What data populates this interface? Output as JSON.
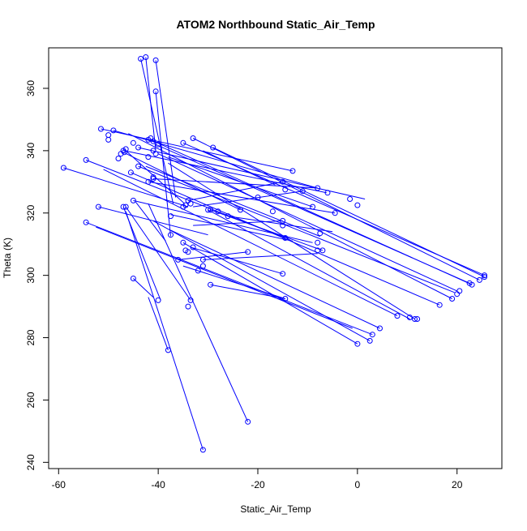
{
  "chart_data": {
    "type": "line",
    "title": "ATOM2 Northbound Static_Air_Temp",
    "xlabel": "Static_Air_Temp",
    "ylabel": "Theta (K)",
    "xlim": [
      -62,
      29
    ],
    "ylim": [
      238,
      373
    ],
    "x_ticks": [
      -60,
      -40,
      -20,
      0,
      20
    ],
    "y_ticks": [
      240,
      260,
      280,
      300,
      320,
      340,
      360
    ],
    "grid": false,
    "series_color": "#0000ff",
    "segments": [
      [
        [
          -46.5,
          340
        ],
        [
          -34.7,
          323
        ]
      ],
      [
        [
          -46.8,
          340
        ],
        [
          -6.2,
          326.5
        ]
      ],
      [
        [
          -47.0,
          339.5
        ],
        [
          -23.5,
          321
        ]
      ],
      [
        [
          -44,
          341
        ],
        [
          1.5,
          324.5
        ]
      ],
      [
        [
          -42.5,
          335
        ],
        [
          -7.5,
          312.5
        ]
      ],
      [
        [
          -38,
          338
        ],
        [
          -9,
          322
        ]
      ],
      [
        [
          -31,
          340
        ],
        [
          -16.5,
          329
        ]
      ],
      [
        [
          -35,
          342.5
        ],
        [
          25.5,
          300
        ]
      ],
      [
        [
          -33,
          344
        ],
        [
          24.5,
          298.5
        ]
      ],
      [
        [
          -29,
          341
        ],
        [
          25.5,
          299.5
        ]
      ],
      [
        [
          -41.5,
          343.5
        ],
        [
          23,
          297
        ]
      ],
      [
        [
          -40.5,
          342
        ],
        [
          22.5,
          297.5
        ]
      ],
      [
        [
          -44,
          335
        ],
        [
          19.5,
          294.5
        ]
      ],
      [
        [
          -49,
          346.5
        ],
        [
          -8,
          328
        ]
      ],
      [
        [
          -46,
          345.5
        ],
        [
          19,
          292.5
        ]
      ],
      [
        [
          -51.5,
          347
        ],
        [
          -13,
          333.5
        ]
      ],
      [
        [
          -40,
          339
        ],
        [
          20,
          295
        ]
      ],
      [
        [
          -45.5,
          333
        ],
        [
          16.5,
          290.5
        ]
      ],
      [
        [
          -41,
          331
        ],
        [
          -8,
          328
        ]
      ],
      [
        [
          -38,
          336
        ],
        [
          11.5,
          286
        ]
      ],
      [
        [
          -59,
          334.5
        ],
        [
          -34,
          322
        ]
      ],
      [
        [
          -54.5,
          337
        ],
        [
          -14.5,
          312
        ]
      ],
      [
        [
          -51,
          334
        ],
        [
          8,
          287
        ]
      ],
      [
        [
          -42,
          330
        ],
        [
          -4.5,
          320
        ]
      ],
      [
        [
          -34,
          324
        ],
        [
          -15,
          330
        ]
      ],
      [
        [
          -45,
          324
        ],
        [
          -9,
          310.5
        ]
      ],
      [
        [
          -33,
          322
        ],
        [
          -11,
          327
        ]
      ],
      [
        [
          -37.5,
          319.5
        ],
        [
          -13,
          311
        ]
      ],
      [
        [
          -29.5,
          321
        ],
        [
          -7,
          308
        ]
      ],
      [
        [
          -26,
          319
        ],
        [
          -5,
          314
        ]
      ],
      [
        [
          -33,
          316
        ],
        [
          -15,
          317.5
        ]
      ],
      [
        [
          -30,
          321
        ],
        [
          10.5,
          286
        ]
      ],
      [
        [
          -52,
          322
        ],
        [
          -30,
          313
        ]
      ],
      [
        [
          -54.5,
          317
        ],
        [
          3,
          281
        ]
      ],
      [
        [
          -52.5,
          315.5
        ],
        [
          -1,
          283
        ]
      ],
      [
        [
          -47,
          322
        ],
        [
          -39.5,
          292
        ]
      ],
      [
        [
          -46.5,
          322
        ],
        [
          -33.5,
          292
        ]
      ],
      [
        [
          -42,
          323
        ],
        [
          -22,
          253
        ]
      ],
      [
        [
          -46.5,
          320.5
        ],
        [
          -31,
          244
        ]
      ],
      [
        [
          -41,
          317.5
        ],
        [
          2.5,
          279
        ]
      ],
      [
        [
          -37.5,
          314.5
        ],
        [
          4.5,
          283
        ]
      ],
      [
        [
          -35,
          310.5
        ],
        [
          0,
          278
        ]
      ],
      [
        [
          -33.5,
          309
        ],
        [
          -15,
          300.5
        ]
      ],
      [
        [
          -31,
          305
        ],
        [
          -8,
          307
        ]
      ],
      [
        [
          -29.5,
          297
        ],
        [
          -14.5,
          292.5
        ]
      ],
      [
        [
          -36,
          305
        ],
        [
          -22,
          307.5
        ]
      ],
      [
        [
          -35,
          303
        ],
        [
          -14.5,
          292.5
        ]
      ],
      [
        [
          -43.5,
          369.5
        ],
        [
          -37,
          323
        ]
      ],
      [
        [
          -42.5,
          370
        ],
        [
          -40.5,
          340
        ]
      ],
      [
        [
          -40.5,
          369
        ],
        [
          -36.5,
          325
        ]
      ],
      [
        [
          -40.5,
          359
        ],
        [
          -37.5,
          312.5
        ]
      ],
      [
        [
          -45,
          299
        ],
        [
          -41,
          293
        ]
      ],
      [
        [
          -38,
          276
        ],
        [
          -42,
          293
        ]
      ],
      [
        [
          -44.5,
          323.5
        ],
        [
          -38.5,
          311
        ]
      ]
    ],
    "points": [
      [
        -43.5,
        369.5
      ],
      [
        -42.5,
        370
      ],
      [
        -40.5,
        369
      ],
      [
        -40.5,
        359
      ],
      [
        -51.5,
        347
      ],
      [
        -49,
        346.5
      ],
      [
        -50,
        345
      ],
      [
        -50,
        343.5
      ],
      [
        -48,
        337.5
      ],
      [
        -45,
        342.5
      ],
      [
        -44,
        341
      ],
      [
        -42,
        343.5
      ],
      [
        -41.5,
        344
      ],
      [
        -41,
        343
      ],
      [
        -40,
        342
      ],
      [
        -41,
        340
      ],
      [
        -40.5,
        339
      ],
      [
        -46.5,
        340.5
      ],
      [
        -47,
        340
      ],
      [
        -46.8,
        339.5
      ],
      [
        -47.5,
        339
      ],
      [
        -44,
        335
      ],
      [
        -45.5,
        333
      ],
      [
        -42,
        338
      ],
      [
        -42,
        330
      ],
      [
        -41,
        331.5
      ],
      [
        -41,
        331
      ],
      [
        -35,
        342.5
      ],
      [
        -33,
        344
      ],
      [
        -29,
        341
      ],
      [
        -59,
        334.5
      ],
      [
        -54.5,
        337
      ],
      [
        -34,
        324
      ],
      [
        -33.5,
        323
      ],
      [
        -34.5,
        322.5
      ],
      [
        -35,
        322
      ],
      [
        -30,
        321
      ],
      [
        -29.5,
        321
      ],
      [
        -28,
        320.5
      ],
      [
        -26,
        319
      ],
      [
        -23.5,
        321
      ],
      [
        -20,
        325
      ],
      [
        -17,
        320.5
      ],
      [
        -15,
        317.5
      ],
      [
        -14.5,
        312
      ],
      [
        -15,
        316
      ],
      [
        -14.5,
        327.5
      ],
      [
        -15,
        330
      ],
      [
        -13,
        333.5
      ],
      [
        -11,
        327
      ],
      [
        -9,
        322
      ],
      [
        -8,
        328
      ],
      [
        -7.5,
        313.5
      ],
      [
        -8,
        310.5
      ],
      [
        -8,
        308
      ],
      [
        -7,
        308
      ],
      [
        -6,
        326.5
      ],
      [
        -4.5,
        320
      ],
      [
        -1.5,
        324.5
      ],
      [
        0,
        322.5
      ],
      [
        -47,
        322
      ],
      [
        -46.5,
        322
      ],
      [
        -45,
        324
      ],
      [
        -52,
        322
      ],
      [
        -54.5,
        317
      ],
      [
        -37.5,
        319
      ],
      [
        -37.5,
        313
      ],
      [
        -35,
        310.5
      ],
      [
        -34.5,
        308
      ],
      [
        -34,
        307.5
      ],
      [
        -33,
        309
      ],
      [
        -31,
        305
      ],
      [
        -31,
        303
      ],
      [
        -32,
        301.5
      ],
      [
        -36,
        305
      ],
      [
        -29.5,
        297
      ],
      [
        -22,
        307.5
      ],
      [
        -15,
        300.5
      ],
      [
        -14.5,
        292.5
      ],
      [
        -45,
        299
      ],
      [
        -40,
        292
      ],
      [
        -33.5,
        292
      ],
      [
        -34,
        290
      ],
      [
        -38,
        276
      ],
      [
        -22,
        253
      ],
      [
        -31,
        244
      ],
      [
        4.5,
        283
      ],
      [
        3,
        281
      ],
      [
        2.5,
        279
      ],
      [
        0,
        278
      ],
      [
        8,
        287
      ],
      [
        10.5,
        286.5
      ],
      [
        11.5,
        286
      ],
      [
        12,
        286
      ],
      [
        16.5,
        290.5
      ],
      [
        19,
        292.5
      ],
      [
        20,
        294
      ],
      [
        20.5,
        295
      ],
      [
        22.5,
        297.5
      ],
      [
        23,
        297
      ],
      [
        24.5,
        298.5
      ],
      [
        25.5,
        299.5
      ],
      [
        25.5,
        300
      ]
    ]
  }
}
